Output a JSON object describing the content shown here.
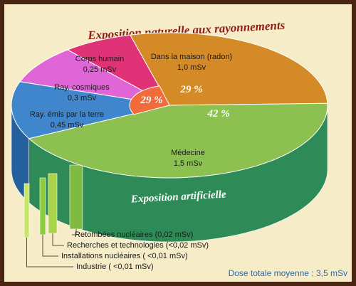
{
  "chart_data": {
    "type": "pie",
    "title": "Exposition naturelle aux rayonnements",
    "artificial_title": "Exposition artificielle",
    "total": "Dose totale moyenne : 3,5 mSv",
    "group_percentages": [
      {
        "label": "29 %",
        "color": "#ffffff"
      },
      {
        "label": "29 %",
        "color": "#ffffff"
      },
      {
        "label": "42 %",
        "color": "#ffffff"
      }
    ],
    "slices": [
      {
        "name": "Dans la maison (radon)",
        "value_label": "1,0 mSv",
        "value": 1.0,
        "color": "#d48b27",
        "side": "#9a5f12"
      },
      {
        "name": "Médecine",
        "value_label": "1,5 mSv",
        "value": 1.5,
        "color": "#8cc151",
        "side": "#2e8b57"
      },
      {
        "name": "Ray. émis par la terre",
        "value_label": "0,45 mSv",
        "value": 0.45,
        "color": "#3f86cc",
        "side": "#25609e"
      },
      {
        "name": "Ray. cosmiques",
        "value_label": "0,3 mSv",
        "value": 0.3,
        "color": "#e066d8",
        "side": "#a0409a"
      },
      {
        "name": "Corps humain",
        "value_label": "0,25 mSv",
        "value": 0.25,
        "color": "#e03377",
        "side": "#a02150"
      }
    ],
    "minor_sources": [
      {
        "label": "Retombées nucléaires (0,02 mSv)",
        "color": "#7fbb43"
      },
      {
        "label": "Recherches et technologies (<0,02 mSv)",
        "color": "#a9d34a"
      },
      {
        "label": "Installations nucléaires ( <0,01 mSv)",
        "color": "#8bcc3d"
      },
      {
        "label": "Industrie  ( <0,01 mSv)",
        "color": "#c8e66a"
      }
    ],
    "inner_disc_color": "#f26b3a"
  }
}
